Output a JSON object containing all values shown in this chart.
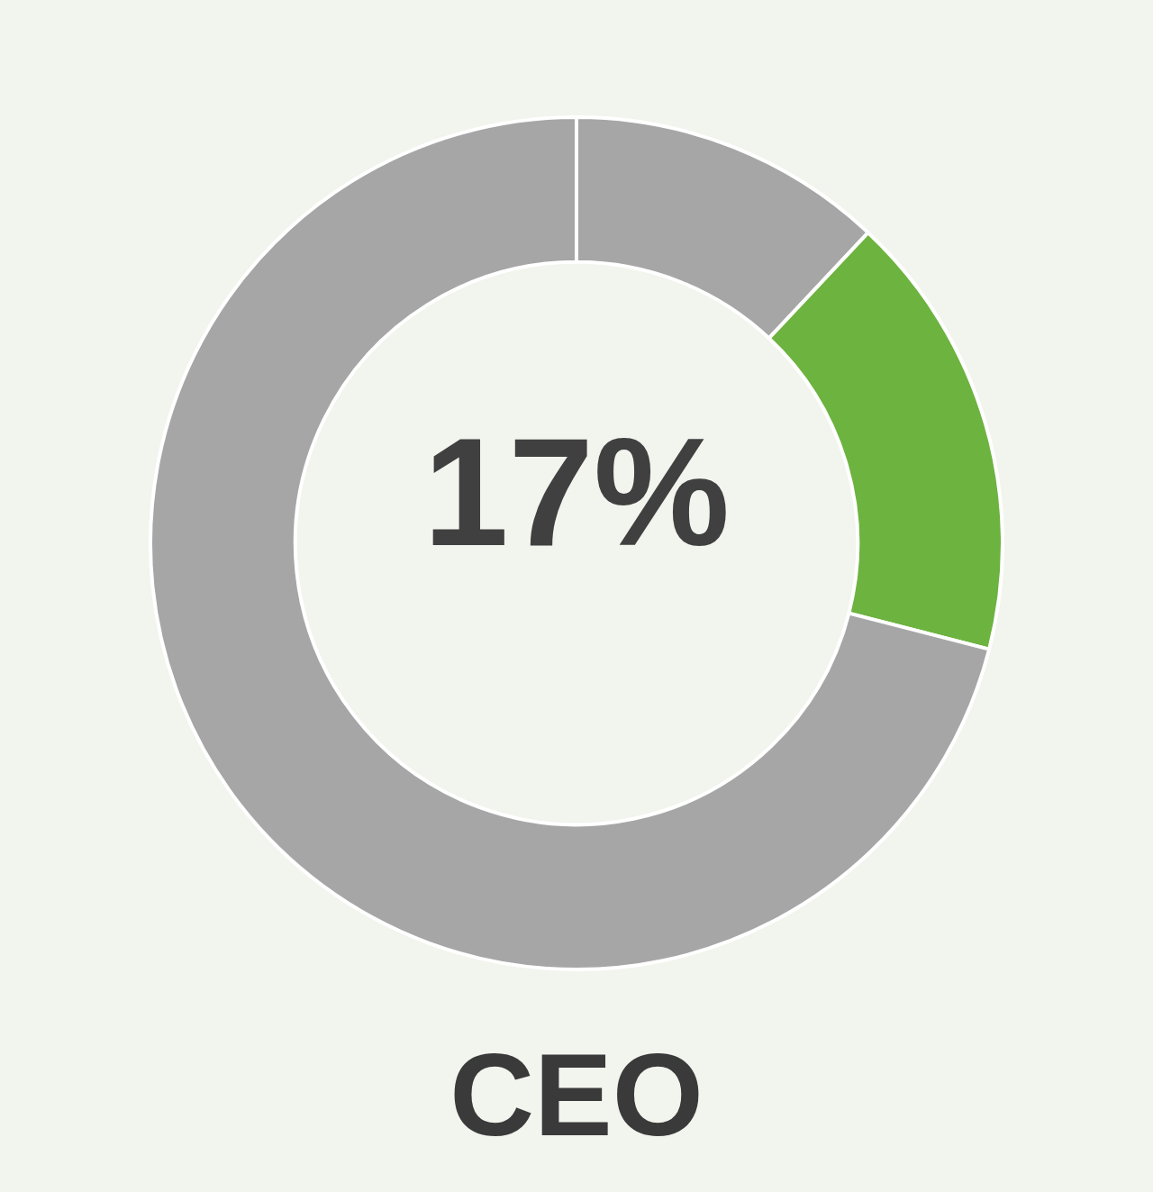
{
  "chart_data": {
    "type": "donut",
    "title": "CEO",
    "categories": [
      null,
      null,
      null
    ],
    "values": [
      12,
      17,
      71
    ],
    "colors": [
      "#a6a6a6",
      "#6db33f",
      "#a6a6a6"
    ],
    "annotations": [
      "17%"
    ],
    "legend": false
  }
}
